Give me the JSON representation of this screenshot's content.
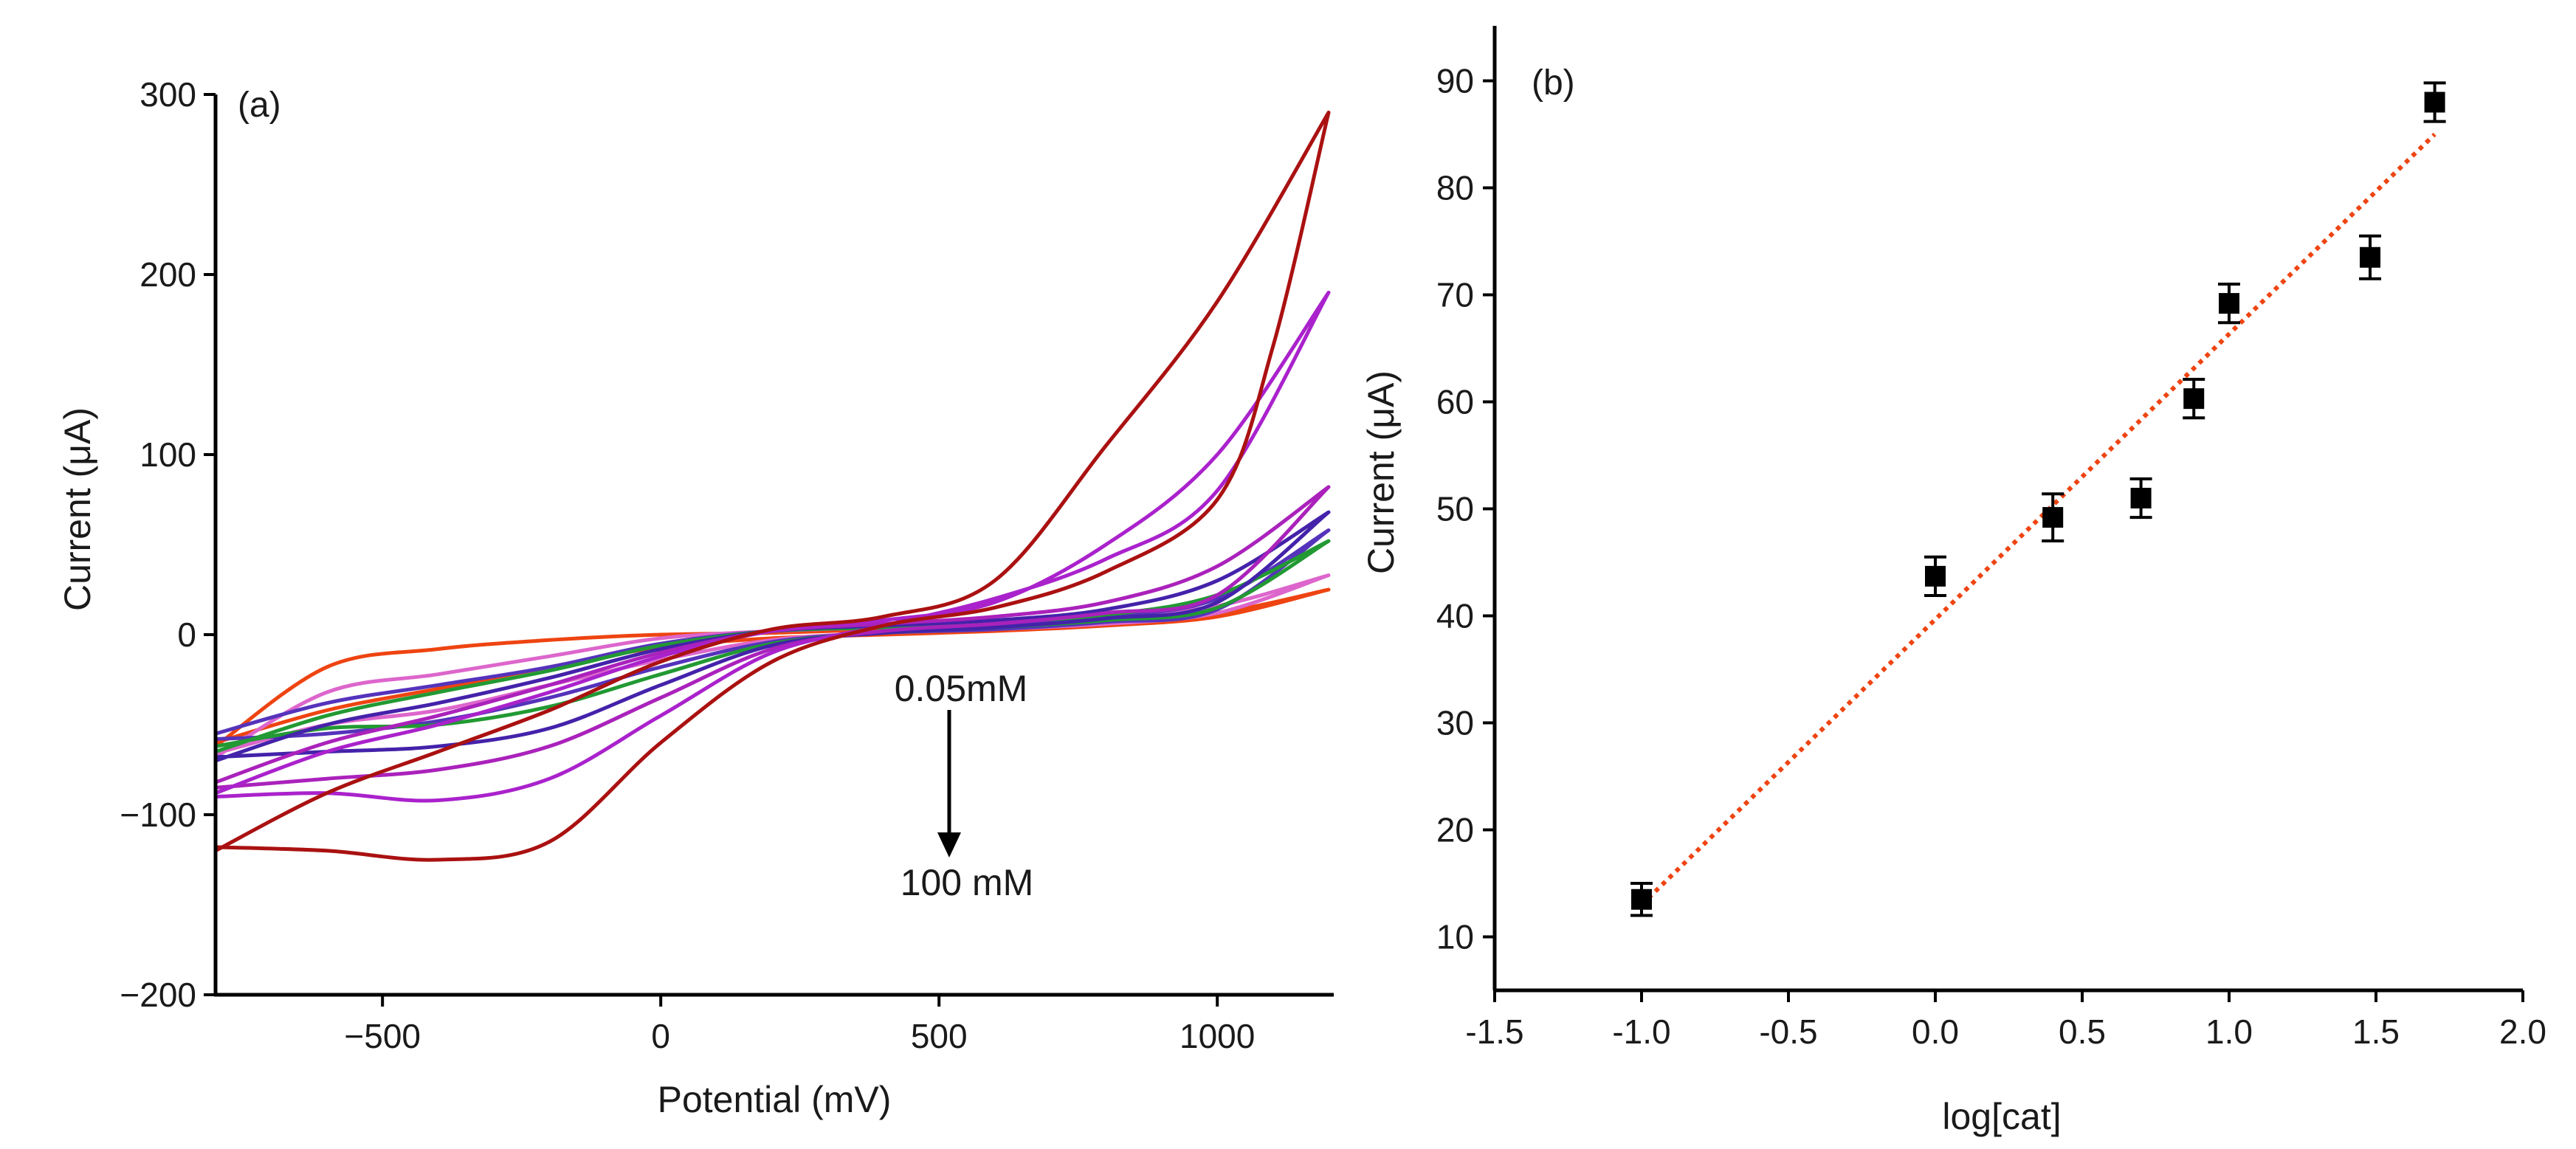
{
  "chart_data": [
    {
      "type": "line",
      "panel_label": "(a)",
      "xlabel": "Potential (mV)",
      "ylabel": "Current (μA)",
      "xlim": [
        -800,
        1200
      ],
      "ylim": [
        -200,
        300
      ],
      "xticks": [
        -500,
        0,
        500,
        1000
      ],
      "xtick_labels": [
        "−500",
        "0",
        "500",
        "1000"
      ],
      "yticks": [
        -200,
        -100,
        0,
        100,
        200,
        300
      ],
      "ytick_labels": [
        "−200",
        "−100",
        "0",
        "100",
        "200",
        "300"
      ],
      "annotations": {
        "top": "0.05mM",
        "bottom": "100 mM"
      },
      "series": [
        {
          "color": "#ee4411",
          "forward": [
            [
              -800,
              -62
            ],
            [
              -600,
              -18
            ],
            [
              -400,
              -8
            ],
            [
              -200,
              -3
            ],
            [
              0,
              0
            ],
            [
              200,
              1
            ],
            [
              400,
              3
            ],
            [
              600,
              5
            ],
            [
              800,
              8
            ],
            [
              1000,
              12
            ],
            [
              1200,
              25
            ]
          ],
          "reverse": [
            [
              1200,
              25
            ],
            [
              1000,
              10
            ],
            [
              800,
              5
            ],
            [
              600,
              2
            ],
            [
              400,
              0
            ],
            [
              200,
              -2
            ],
            [
              0,
              -7
            ],
            [
              -200,
              -18
            ],
            [
              -400,
              -30
            ],
            [
              -600,
              -42
            ],
            [
              -800,
              -60
            ]
          ]
        },
        {
          "color": "#dd66cc",
          "forward": [
            [
              -800,
              -68
            ],
            [
              -600,
              -32
            ],
            [
              -400,
              -22
            ],
            [
              -200,
              -12
            ],
            [
              0,
              -2
            ],
            [
              200,
              2
            ],
            [
              400,
              4
            ],
            [
              600,
              6
            ],
            [
              800,
              10
            ],
            [
              1000,
              16
            ],
            [
              1200,
              33
            ]
          ],
          "reverse": [
            [
              1200,
              33
            ],
            [
              1000,
              12
            ],
            [
              800,
              6
            ],
            [
              600,
              3
            ],
            [
              400,
              1
            ],
            [
              200,
              -3
            ],
            [
              0,
              -14
            ],
            [
              -200,
              -28
            ],
            [
              -400,
              -42
            ],
            [
              -600,
              -50
            ],
            [
              -800,
              -66
            ]
          ]
        },
        {
          "color": "#5533bb",
          "forward": [
            [
              -800,
              -55
            ],
            [
              -600,
              -38
            ],
            [
              -400,
              -28
            ],
            [
              -200,
              -18
            ],
            [
              0,
              -5
            ],
            [
              200,
              2
            ],
            [
              400,
              4
            ],
            [
              600,
              6
            ],
            [
              800,
              10
            ],
            [
              1000,
              20
            ],
            [
              1200,
              58
            ]
          ],
          "reverse": [
            [
              1200,
              58
            ],
            [
              1000,
              14
            ],
            [
              800,
              7
            ],
            [
              600,
              3
            ],
            [
              400,
              1
            ],
            [
              200,
              -4
            ],
            [
              0,
              -18
            ],
            [
              -200,
              -35
            ],
            [
              -400,
              -48
            ],
            [
              -600,
              -55
            ],
            [
              -800,
              -58
            ]
          ]
        },
        {
          "color": "#229933",
          "forward": [
            [
              -800,
              -65
            ],
            [
              -600,
              -45
            ],
            [
              -400,
              -32
            ],
            [
              -200,
              -20
            ],
            [
              0,
              -6
            ],
            [
              200,
              2
            ],
            [
              400,
              4
            ],
            [
              600,
              7
            ],
            [
              800,
              11
            ],
            [
              1000,
              22
            ],
            [
              1200,
              52
            ]
          ],
          "reverse": [
            [
              1200,
              52
            ],
            [
              1000,
              15
            ],
            [
              800,
              8
            ],
            [
              600,
              4
            ],
            [
              400,
              1
            ],
            [
              200,
              -5
            ],
            [
              0,
              -22
            ],
            [
              -200,
              -40
            ],
            [
              -400,
              -50
            ],
            [
              -600,
              -52
            ],
            [
              -800,
              -62
            ]
          ]
        },
        {
          "color": "#4422aa",
          "forward": [
            [
              -800,
              -70
            ],
            [
              -600,
              -50
            ],
            [
              -400,
              -38
            ],
            [
              -200,
              -24
            ],
            [
              0,
              -8
            ],
            [
              200,
              2
            ],
            [
              400,
              5
            ],
            [
              600,
              8
            ],
            [
              800,
              14
            ],
            [
              1000,
              30
            ],
            [
              1200,
              68
            ]
          ],
          "reverse": [
            [
              1200,
              68
            ],
            [
              1000,
              18
            ],
            [
              800,
              9
            ],
            [
              600,
              4
            ],
            [
              400,
              1
            ],
            [
              200,
              -6
            ],
            [
              0,
              -28
            ],
            [
              -200,
              -52
            ],
            [
              -400,
              -62
            ],
            [
              -600,
              -65
            ],
            [
              -800,
              -68
            ]
          ]
        },
        {
          "color": "#aa22bb",
          "forward": [
            [
              -800,
              -82
            ],
            [
              -600,
              -60
            ],
            [
              -400,
              -45
            ],
            [
              -200,
              -28
            ],
            [
              0,
              -10
            ],
            [
              200,
              2
            ],
            [
              400,
              6
            ],
            [
              600,
              10
            ],
            [
              800,
              18
            ],
            [
              1000,
              38
            ],
            [
              1200,
              82
            ]
          ],
          "reverse": [
            [
              1200,
              82
            ],
            [
              1000,
              22
            ],
            [
              800,
              12
            ],
            [
              600,
              6
            ],
            [
              400,
              2
            ],
            [
              200,
              -8
            ],
            [
              0,
              -35
            ],
            [
              -200,
              -62
            ],
            [
              -400,
              -75
            ],
            [
              -600,
              -80
            ],
            [
              -800,
              -85
            ]
          ]
        },
        {
          "color": "#aa22cc",
          "forward": [
            [
              -800,
              -88
            ],
            [
              -600,
              -65
            ],
            [
              -400,
              -50
            ],
            [
              -200,
              -32
            ],
            [
              0,
              -12
            ],
            [
              200,
              2
            ],
            [
              400,
              8
            ],
            [
              600,
              18
            ],
            [
              800,
              50
            ],
            [
              1000,
              100
            ],
            [
              1200,
              190
            ]
          ],
          "reverse": [
            [
              1200,
              190
            ],
            [
              1000,
              80
            ],
            [
              800,
              42
            ],
            [
              600,
              20
            ],
            [
              400,
              5
            ],
            [
              200,
              -10
            ],
            [
              0,
              -45
            ],
            [
              -200,
              -80
            ],
            [
              -400,
              -92
            ],
            [
              -600,
              -88
            ],
            [
              -800,
              -90
            ]
          ]
        },
        {
          "color": "#aa1111",
          "forward": [
            [
              -800,
              -120
            ],
            [
              -600,
              -88
            ],
            [
              -400,
              -65
            ],
            [
              -200,
              -42
            ],
            [
              0,
              -15
            ],
            [
              200,
              3
            ],
            [
              400,
              10
            ],
            [
              600,
              30
            ],
            [
              800,
              105
            ],
            [
              1000,
              185
            ],
            [
              1200,
              290
            ]
          ],
          "reverse": [
            [
              1200,
              290
            ],
            [
              1100,
              160
            ],
            [
              1000,
              75
            ],
            [
              800,
              35
            ],
            [
              600,
              15
            ],
            [
              400,
              5
            ],
            [
              200,
              -15
            ],
            [
              0,
              -60
            ],
            [
              -200,
              -115
            ],
            [
              -400,
              -125
            ],
            [
              -600,
              -120
            ],
            [
              -800,
              -118
            ]
          ]
        }
      ]
    },
    {
      "type": "scatter",
      "panel_label": "(b)",
      "xlabel": "log[cat]",
      "ylabel": "Current (μA)",
      "xlim": [
        -1.5,
        2.0
      ],
      "ylim": [
        5,
        95
      ],
      "xticks": [
        -1.5,
        -1.0,
        -0.5,
        0.0,
        0.5,
        1.0,
        1.5,
        2.0
      ],
      "xtick_labels": [
        "-1.5",
        "-1.0",
        "-0.5",
        "0.0",
        "0.5",
        "1.0",
        "1.5",
        "2.0"
      ],
      "yticks": [
        10,
        20,
        30,
        40,
        50,
        60,
        70,
        80,
        90
      ],
      "ytick_labels": [
        "10",
        "20",
        "30",
        "40",
        "50",
        "60",
        "70",
        "80",
        "90"
      ],
      "points": [
        {
          "x": -1.0,
          "y": 13.5,
          "err": 1.5
        },
        {
          "x": 0.0,
          "y": 43.7,
          "err": 1.8
        },
        {
          "x": 0.4,
          "y": 49.2,
          "err": 2.2
        },
        {
          "x": 0.7,
          "y": 51.0,
          "err": 1.8
        },
        {
          "x": 0.88,
          "y": 60.3,
          "err": 1.8
        },
        {
          "x": 1.0,
          "y": 69.2,
          "err": 1.8
        },
        {
          "x": 1.48,
          "y": 73.5,
          "err": 2.0
        },
        {
          "x": 1.7,
          "y": 88.0,
          "err": 1.8
        }
      ],
      "fit": {
        "x0": -1.0,
        "y0": 13.0,
        "x1": 1.7,
        "y1": 85.0,
        "color": "#ee4411",
        "style": "dotted"
      }
    }
  ]
}
